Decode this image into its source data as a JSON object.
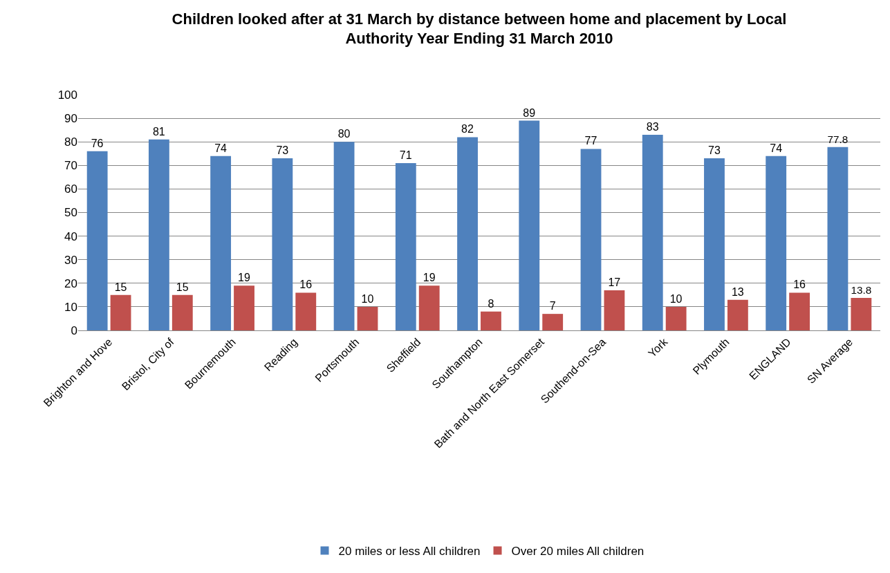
{
  "chart_data": {
    "type": "bar",
    "title": "Children looked after at 31 March by distance between home and placement by Local Authority Year Ending 31 March 2010",
    "categories": [
      "Brighton and Hove",
      "Bristol, City of",
      "Bournemouth",
      "Reading",
      "Portsmouth",
      "Sheffield",
      "Southampton",
      "Bath and North East Somerset",
      "Southend-on-Sea",
      "York",
      "Plymouth",
      "ENGLAND",
      "SN Average"
    ],
    "series": [
      {
        "name": "20 miles or less All children",
        "color": "#4f81bd",
        "values": [
          76,
          81,
          74,
          73,
          80,
          71,
          82,
          89,
          77,
          83,
          73,
          74,
          77.8
        ]
      },
      {
        "name": "Over 20 miles All children",
        "color": "#c0504d",
        "values": [
          15,
          15,
          19,
          16,
          10,
          19,
          8,
          7,
          17,
          10,
          13,
          16,
          13.8
        ]
      }
    ],
    "ylim": [
      0,
      100
    ],
    "yticks": [
      0,
      10,
      20,
      30,
      40,
      50,
      60,
      70,
      80,
      90,
      100
    ],
    "grid": "y",
    "legend": "bottom",
    "data_labels": true
  }
}
